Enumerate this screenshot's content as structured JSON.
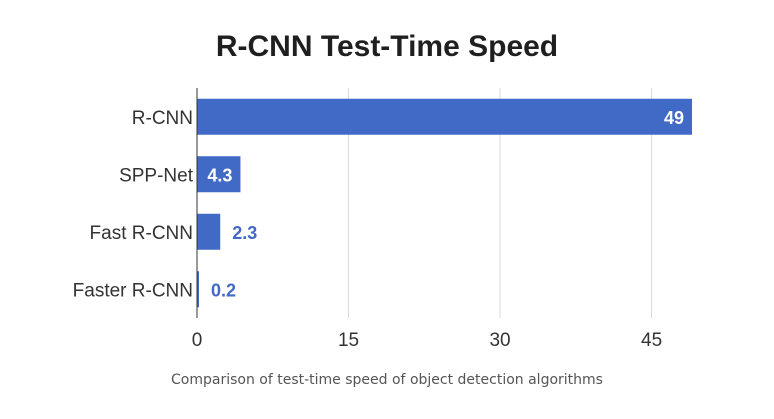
{
  "chart_data": {
    "type": "bar",
    "orientation": "horizontal",
    "title": "R-CNN Test-Time Speed",
    "categories": [
      "R-CNN",
      "SPP-Net",
      "Fast R-CNN",
      "Faster R-CNN"
    ],
    "values": [
      49,
      4.3,
      2.3,
      0.2
    ],
    "value_labels": [
      "49",
      "4.3",
      "2.3",
      "0.2"
    ],
    "xticks": [
      0,
      15,
      30,
      45
    ],
    "xlim": [
      0,
      49
    ],
    "xlabel": "",
    "ylabel": "",
    "grid": true,
    "legend": "none",
    "bar_color": "#4169c6"
  },
  "caption": "Comparison of test-time speed of object detection algorithms"
}
